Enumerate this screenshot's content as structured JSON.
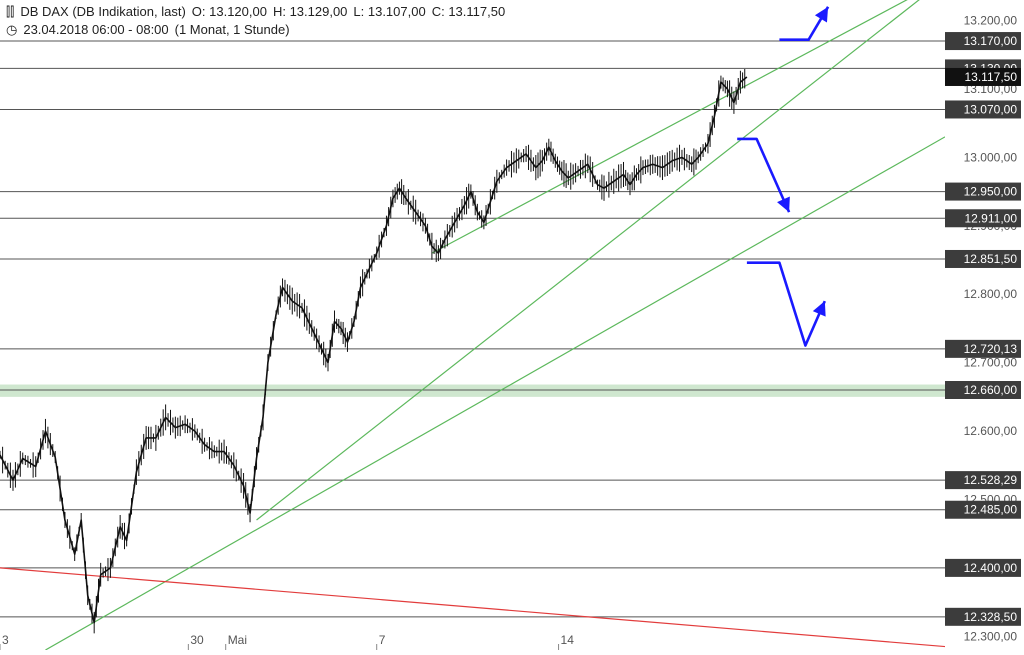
{
  "header": {
    "icon": "candlestick-icon",
    "instrument": "DB DAX (DB Indikation, last)",
    "open": "O: 13.120,00",
    "high": "H: 13.129,00",
    "low": "L: 13.107,00",
    "close": "C: 13.117,50",
    "clock_icon": "clock-icon",
    "period": "23.04.2018 06:00 - 08:00",
    "range": "(1 Monat, 1 Stunde)"
  },
  "colors": {
    "background": "#ffffff",
    "price": "#111111",
    "level_line": "#555555",
    "trend_green": "#5cb85c",
    "trend_red": "#e23c3c",
    "arrow_blue": "#1a1aff",
    "label_box": "#3c3c3c",
    "zone_fill": "#cfe7cf"
  },
  "chart_data": {
    "type": "line",
    "ylim": [
      12280,
      13230
    ],
    "y_tick_labels": [
      {
        "value": 13200,
        "label": "13.200,00"
      },
      {
        "value": 13100,
        "label": "13.100,00"
      },
      {
        "value": 13000,
        "label": "13.000,00"
      },
      {
        "value": 12900,
        "label": "12.900,00"
      },
      {
        "value": 12800,
        "label": "12.800,00"
      },
      {
        "value": 12700,
        "label": "12.700,00"
      },
      {
        "value": 12600,
        "label": "12.600,00"
      },
      {
        "value": 12500,
        "label": "12.500,00"
      },
      {
        "value": 12400,
        "label": "12.400,00"
      },
      {
        "value": 12300,
        "label": "12.300,00"
      }
    ],
    "x_tick_labels": [
      {
        "index": 0,
        "label": "3"
      },
      {
        "index": 116,
        "label": "30"
      },
      {
        "index": 139,
        "label": "Mai"
      },
      {
        "index": 232,
        "label": "7"
      },
      {
        "index": 344,
        "label": "14"
      }
    ],
    "levels": [
      {
        "value": 13170,
        "label": "13.170,00"
      },
      {
        "value": 13130,
        "label": "13.130,00"
      },
      {
        "value": 13070,
        "label": "13.070,00"
      },
      {
        "value": 12950,
        "label": "12.950,00"
      },
      {
        "value": 12911,
        "label": "12.911,00"
      },
      {
        "value": 12851.5,
        "label": "12.851,50"
      },
      {
        "value": 12720.13,
        "label": "12.720,13"
      },
      {
        "value": 12660,
        "label": "12.660,00"
      },
      {
        "value": 12528.29,
        "label": "12.528,29"
      },
      {
        "value": 12485,
        "label": "12.485,00"
      },
      {
        "value": 12400,
        "label": "12.400,00"
      },
      {
        "value": 12328.5,
        "label": "12.328,50"
      }
    ],
    "zone": {
      "from": 12650,
      "to": 12668
    },
    "last_price": {
      "value": 13117.5,
      "label": "13.117,50"
    },
    "price_path": [
      [
        0,
        12565
      ],
      [
        8,
        12528
      ],
      [
        14,
        12560
      ],
      [
        22,
        12548
      ],
      [
        28,
        12600
      ],
      [
        34,
        12562
      ],
      [
        40,
        12470
      ],
      [
        46,
        12420
      ],
      [
        50,
        12470
      ],
      [
        54,
        12360
      ],
      [
        58,
        12320
      ],
      [
        62,
        12390
      ],
      [
        68,
        12400
      ],
      [
        74,
        12460
      ],
      [
        78,
        12440
      ],
      [
        84,
        12540
      ],
      [
        90,
        12590
      ],
      [
        96,
        12590
      ],
      [
        102,
        12620
      ],
      [
        108,
        12605
      ],
      [
        114,
        12610
      ],
      [
        120,
        12600
      ],
      [
        126,
        12580
      ],
      [
        132,
        12570
      ],
      [
        138,
        12570
      ],
      [
        144,
        12550
      ],
      [
        150,
        12520
      ],
      [
        154,
        12480
      ],
      [
        158,
        12560
      ],
      [
        162,
        12620
      ],
      [
        165,
        12700
      ],
      [
        170,
        12770
      ],
      [
        174,
        12810
      ],
      [
        180,
        12790
      ],
      [
        186,
        12780
      ],
      [
        192,
        12750
      ],
      [
        198,
        12720
      ],
      [
        202,
        12700
      ],
      [
        206,
        12760
      ],
      [
        210,
        12750
      ],
      [
        214,
        12730
      ],
      [
        218,
        12760
      ],
      [
        222,
        12810
      ],
      [
        226,
        12830
      ],
      [
        232,
        12860
      ],
      [
        238,
        12900
      ],
      [
        242,
        12940
      ],
      [
        246,
        12955
      ],
      [
        250,
        12940
      ],
      [
        256,
        12920
      ],
      [
        262,
        12900
      ],
      [
        266,
        12870
      ],
      [
        270,
        12860
      ],
      [
        274,
        12880
      ],
      [
        280,
        12905
      ],
      [
        286,
        12930
      ],
      [
        290,
        12950
      ],
      [
        294,
        12920
      ],
      [
        298,
        12905
      ],
      [
        302,
        12935
      ],
      [
        306,
        12965
      ],
      [
        312,
        12985
      ],
      [
        318,
        12995
      ],
      [
        324,
        13005
      ],
      [
        330,
        12985
      ],
      [
        334,
        12995
      ],
      [
        338,
        13015
      ],
      [
        342,
        12995
      ],
      [
        346,
        12980
      ],
      [
        350,
        12970
      ],
      [
        356,
        12980
      ],
      [
        362,
        12990
      ],
      [
        368,
        12960
      ],
      [
        372,
        12955
      ],
      [
        378,
        12965
      ],
      [
        384,
        12975
      ],
      [
        388,
        12960
      ],
      [
        392,
        12975
      ],
      [
        396,
        12985
      ],
      [
        402,
        12990
      ],
      [
        408,
        12985
      ],
      [
        414,
        12995
      ],
      [
        420,
        13000
      ],
      [
        426,
        12990
      ],
      [
        430,
        13000
      ],
      [
        436,
        13020
      ],
      [
        440,
        13060
      ],
      [
        444,
        13110
      ],
      [
        448,
        13100
      ],
      [
        452,
        13080
      ],
      [
        456,
        13110
      ],
      [
        460,
        13117.5
      ]
    ],
    "trend_lines": [
      {
        "color": "green",
        "from": [
          266,
          12860
        ],
        "to": [
          582,
          13260
        ]
      },
      {
        "color": "green",
        "from": [
          158,
          12470
        ],
        "to": [
          582,
          13260
        ]
      },
      {
        "color": "green",
        "from": [
          28,
          12280
        ],
        "to": [
          582,
          13030
        ]
      },
      {
        "color": "red",
        "from": [
          0,
          12400
        ],
        "to": [
          582,
          12285
        ]
      }
    ],
    "arrows": [
      {
        "points": [
          [
            480,
            13172
          ],
          [
            498,
            13172
          ],
          [
            510,
            13220
          ]
        ]
      },
      {
        "points": [
          [
            454,
            13027
          ],
          [
            466,
            13027
          ],
          [
            486,
            12920
          ]
        ]
      },
      {
        "points": [
          [
            460,
            12846
          ],
          [
            480,
            12846
          ],
          [
            496,
            12725
          ],
          [
            508,
            12790
          ]
        ]
      }
    ]
  }
}
